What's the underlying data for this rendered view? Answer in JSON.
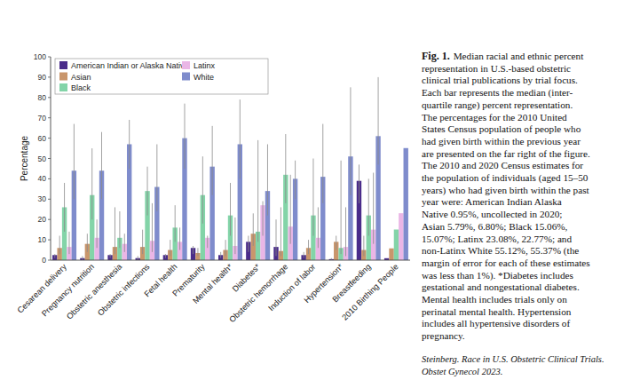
{
  "chart_data": {
    "type": "bar",
    "y_label": "Percentage",
    "categories": [
      "Cesarean delivery",
      "Pregnancy nutrition",
      "Obstetric anesthesia",
      "Obstetric infections",
      "Fetal health",
      "Prematurity",
      "Mental health*",
      "Diabetes*",
      "Obstetric hemorrhage",
      "Induction of labor",
      "Hypertension*",
      "Breastfeeding",
      "2010 Birthing People"
    ],
    "series": [
      {
        "name": "American Indian or Alaska Native",
        "color": "#4a2c8a",
        "values": [
          2.5,
          1,
          2.5,
          1,
          2.5,
          6,
          2.5,
          9,
          6.5,
          2.5,
          0.5,
          39,
          0.95
        ],
        "iqr": [
          [
            1,
            3
          ],
          [
            0,
            2
          ],
          [
            1,
            3
          ],
          [
            0,
            2
          ],
          [
            1,
            3
          ],
          [
            3,
            7
          ],
          [
            1,
            4
          ],
          [
            4,
            12
          ],
          [
            2,
            20
          ],
          [
            1,
            4
          ],
          [
            0,
            1
          ],
          [
            28,
            47
          ],
          null
        ]
      },
      {
        "name": "Asian",
        "color": "#c9966c",
        "values": [
          6,
          8,
          6.5,
          6.5,
          5,
          3.5,
          5,
          13,
          4.5,
          6,
          9,
          5,
          5.79
        ],
        "iqr": [
          [
            3,
            12
          ],
          [
            4,
            13
          ],
          [
            3,
            26
          ],
          [
            3,
            15
          ],
          [
            2,
            10
          ],
          [
            2,
            6
          ],
          [
            2,
            10
          ],
          [
            7,
            23
          ],
          [
            2,
            26
          ],
          [
            3,
            10
          ],
          [
            5,
            12
          ],
          [
            2,
            12
          ],
          null
        ]
      },
      {
        "name": "Black",
        "color": "#83d4a8",
        "values": [
          26,
          32,
          11,
          34,
          16,
          32,
          22,
          14,
          42,
          22,
          6,
          22,
          15.06
        ],
        "iqr": [
          [
            14,
            38
          ],
          [
            20,
            55
          ],
          [
            6,
            24
          ],
          [
            22,
            46
          ],
          [
            9,
            27
          ],
          [
            18,
            51
          ],
          [
            12,
            38
          ],
          [
            9,
            59
          ],
          [
            28,
            62
          ],
          [
            12,
            50
          ],
          [
            3,
            49
          ],
          [
            12,
            40
          ],
          null
        ]
      },
      {
        "name": "Latinx",
        "color": "#eab6e6",
        "values": [
          6.5,
          11,
          8,
          9.5,
          9,
          11,
          7,
          27,
          16.5,
          11,
          6.5,
          15,
          23.08
        ],
        "iqr": [
          [
            3,
            14
          ],
          [
            6,
            20
          ],
          [
            4,
            13
          ],
          [
            4,
            28
          ],
          [
            5,
            16
          ],
          [
            6,
            12
          ],
          [
            3,
            21
          ],
          [
            12,
            29
          ],
          [
            8,
            42
          ],
          [
            6,
            26
          ],
          [
            2,
            26
          ],
          [
            8,
            43
          ],
          null
        ]
      },
      {
        "name": "White",
        "color": "#7f8ccc",
        "values": [
          44,
          44,
          57,
          36,
          60,
          46,
          57,
          34,
          40,
          41,
          51,
          61,
          55.12
        ],
        "iqr": [
          [
            30,
            67
          ],
          [
            30,
            63
          ],
          [
            45,
            69
          ],
          [
            24,
            57
          ],
          [
            45,
            77
          ],
          [
            32,
            66
          ],
          [
            40,
            79
          ],
          [
            22,
            57
          ],
          [
            30,
            49
          ],
          [
            28,
            67
          ],
          [
            32,
            85
          ],
          [
            47,
            90
          ],
          null
        ]
      }
    ],
    "ylim": [
      0,
      100
    ],
    "yticks": [
      0,
      10,
      20,
      30,
      40,
      50,
      60,
      70,
      80,
      90,
      100
    ],
    "grid": false,
    "legend": "top-left",
    "caption_label": "Fig. 1.",
    "caption_lines": [
      "Median racial and ethnic percent",
      "representation in U.S.-based obstetric",
      "clinical trial publications by trial focus.",
      "Each bar represents the median (inter-",
      "quartile range) percent representation.",
      "The percentages for the 2010 United",
      "States Census population of people who",
      "had given birth within the previous year",
      "are presented on the far right of the figure.",
      "The 2010 and 2020 Census estimates for",
      "the population of individuals (aged 15–50",
      "years) who had given birth within the past",
      "year were: American Indian Alaska",
      "Native 0.95%, uncollected in 2020;",
      "Asian 5.79%, 6.80%; Black 15.06%,",
      "15.07%; Latinx 23.08%, 22.77%; and",
      "non-Latinx White 55.12%, 55.37% (the",
      "margin of error for each of these estimates",
      "was less than 1%). *Diabetes includes",
      "gestational and nongestational diabetes.",
      "Mental health includes trials only on",
      "perinatal mental health. Hypertension",
      "includes all hypertensive disorders of",
      "pregnancy."
    ],
    "citation_lines": [
      "Steinberg. Race in U.S. Obstetric Clinical Trials.",
      "Obstet Gynecol 2023."
    ]
  }
}
